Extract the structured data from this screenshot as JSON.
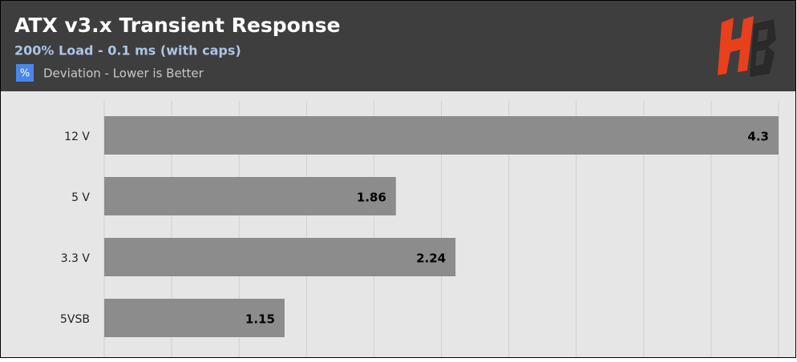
{
  "chart_data": {
    "type": "hbar",
    "title": "ATX v3.x Transient Response",
    "subtitle": "200% Load - 0.1 ms (with caps)",
    "legend": {
      "icon": "%",
      "label": "Deviation - Lower is Better"
    },
    "categories": [
      "12 V",
      "5 V",
      "3.3 V",
      "5VSB"
    ],
    "values": [
      4.3,
      1.86,
      2.24,
      1.15
    ],
    "color": "#8c8c8c",
    "xlim": [
      0,
      4.3
    ],
    "xticks": [
      0,
      0.43,
      0.86,
      1.29,
      1.72,
      2.15,
      2.58,
      3.01,
      3.44,
      3.87,
      4.3
    ],
    "tick_labels": false,
    "grid": true
  }
}
